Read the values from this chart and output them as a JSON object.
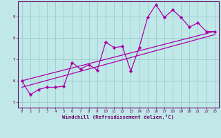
{
  "xlabel": "Windchill (Refroidissement éolien,°C)",
  "bg_color": "#c0e8e8",
  "line_color": "#aa00aa",
  "grid_color": "#99cccc",
  "axis_color": "#660066",
  "spine_color": "#660066",
  "xlim": [
    -0.5,
    23.5
  ],
  "ylim": [
    4.75,
    9.7
  ],
  "xticks": [
    0,
    1,
    2,
    3,
    4,
    5,
    6,
    7,
    8,
    9,
    10,
    11,
    12,
    13,
    14,
    15,
    16,
    17,
    18,
    19,
    20,
    21,
    22,
    23
  ],
  "yticks": [
    5,
    6,
    7,
    8,
    9
  ],
  "series1_x": [
    0,
    1,
    2,
    3,
    4,
    5,
    6,
    7,
    8,
    9,
    10,
    11,
    12,
    13,
    14,
    15,
    16,
    17,
    18,
    19,
    20,
    21,
    22,
    23
  ],
  "series1_y": [
    6.0,
    5.35,
    5.6,
    5.7,
    5.7,
    5.75,
    6.85,
    6.55,
    6.75,
    6.5,
    7.8,
    7.55,
    7.6,
    6.45,
    7.55,
    8.95,
    9.55,
    8.95,
    9.3,
    8.95,
    8.5,
    8.7,
    8.3,
    8.3
  ],
  "series2_x": [
    0,
    23
  ],
  "series2_y": [
    6.0,
    8.3
  ],
  "series3_x": [
    0,
    23
  ],
  "series3_y": [
    5.7,
    8.15
  ],
  "marker": "D",
  "markersize": 2.2,
  "linewidth": 0.9
}
